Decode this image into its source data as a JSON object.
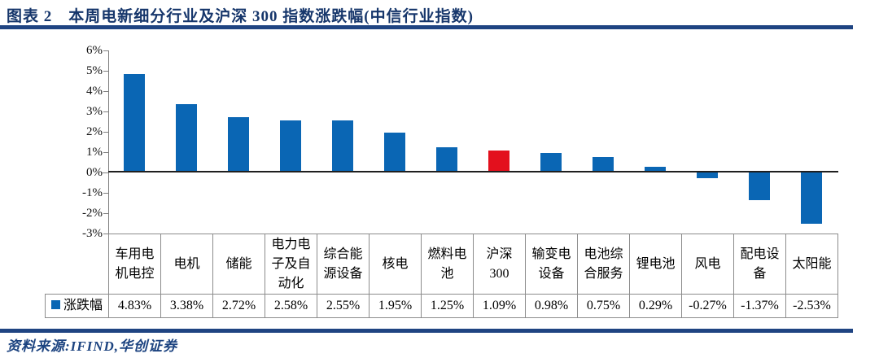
{
  "header": {
    "title": "图表 2　本周电新细分行业及沪深 300 指数涨跌幅(中信行业指数)"
  },
  "footer": {
    "source": "资料来源:IFIND,华创证券"
  },
  "legend": {
    "series_label": "涨跌幅"
  },
  "colors": {
    "navy_title": "#16366B",
    "rule": "#1F4482",
    "source_text": "#1C4380",
    "bar_blue": "#0A66B4",
    "bar_red": "#E3101D",
    "axis": "#7F7F7F",
    "zero_line": "#1F1F1F",
    "table_border": "#8C8C8C"
  },
  "chart_data": {
    "type": "bar",
    "title": "本周电新细分行业及沪深300指数涨跌幅(中信行业指数)",
    "series_name": "涨跌幅",
    "categories": [
      "车用电机电控",
      "电机",
      "储能",
      "电力电子及自动化",
      "综合能源设备",
      "核电",
      "燃料电池",
      "沪深300",
      "输变电设备",
      "电池综合服务",
      "锂电池",
      "风电",
      "配电设备",
      "太阳能"
    ],
    "values": [
      4.83,
      3.38,
      2.72,
      2.58,
      2.55,
      1.95,
      1.25,
      1.09,
      0.98,
      0.75,
      0.29,
      -0.27,
      -1.37,
      -2.53
    ],
    "value_labels": [
      "4.83%",
      "3.38%",
      "2.72%",
      "2.58%",
      "2.55%",
      "1.95%",
      "1.25%",
      "1.09%",
      "0.98%",
      "0.75%",
      "0.29%",
      "-0.27%",
      "-1.37%",
      "-2.53%"
    ],
    "highlight_index": 7,
    "highlight_note": "沪深300 bar drawn in red, all others blue",
    "ylim": [
      -3,
      6
    ],
    "ytick_labels": [
      "6%",
      "5%",
      "4%",
      "3%",
      "2%",
      "1%",
      "0%",
      "-1%",
      "-2%",
      "-3%"
    ],
    "grid": false,
    "legend_position": "data-table-left"
  },
  "table": {
    "headers": [
      "车用电\n机电控",
      "电机",
      "储能",
      "电力电\n子及自\n动化",
      "综合能\n源设备",
      "核电",
      "燃料电\n池",
      "沪深\n300",
      "输变电\n设备",
      "电池综\n合服务",
      "锂电池",
      "风电",
      "配电设\n备",
      "太阳能"
    ],
    "values": [
      "4.83%",
      "3.38%",
      "2.72%",
      "2.58%",
      "2.55%",
      "1.95%",
      "1.25%",
      "1.09%",
      "0.98%",
      "0.75%",
      "0.29%",
      "-0.27%",
      "-1.37%",
      "-2.53%"
    ]
  }
}
